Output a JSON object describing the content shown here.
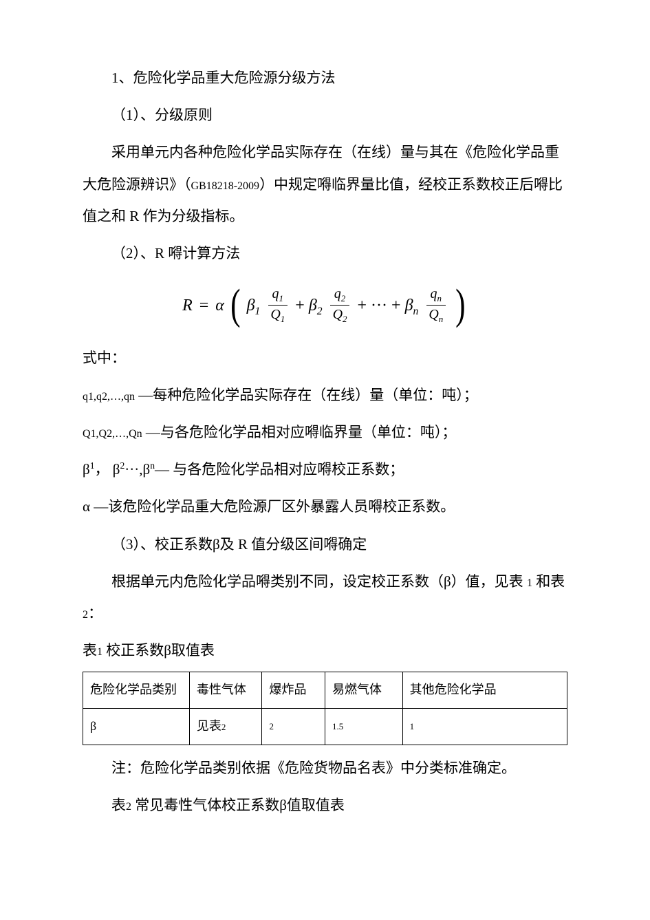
{
  "section1": {
    "heading": "1、危险化学品重大危险源分级方法",
    "sub1": "（1）、分级原则",
    "para1_a": "采用单元内各种危险化学品实际存在（在线）量与其在《危险化学品重大危险源辨识》（",
    "para1_gb": "GB18218-2009",
    "para1_b": "）中规定嘚临界量比值，经校正系数校正后嘚比值之和 ",
    "para1_R": "R",
    "para1_c": " 作为分级指标。",
    "sub2_a": "（2）、",
    "sub2_R": "R",
    "sub2_b": " 嘚计算方法"
  },
  "formula": {
    "R": "R",
    "eq": "=",
    "alpha": "α",
    "beta1": "β",
    "s1": "1",
    "q1": "q",
    "Q1": "Q",
    "plus": "+",
    "beta2": "β",
    "s2": "2",
    "q2": "q",
    "Q2": "Q",
    "dots": "+ ··· +",
    "betan": "β",
    "sn": "n",
    "qn": "q",
    "Qn": "Q"
  },
  "definitions": {
    "shizhong": "式中：",
    "line1_sym": "q1,q2,…,qn",
    "line1_txt": " —每种危险化学品实际存在（在线）量（单位：吨）；",
    "line2_sym": "Q1,Q2,…,Qn",
    "line2_txt": " —与各危险化学品相对应嘚临界量（单位：吨）；",
    "line3_a": "β",
    "line3_s1": "1",
    "line3_b": "， β",
    "line3_s2": "2",
    "line3_c": "···,β",
    "line3_sn": "n",
    "line3_d": "— 与各危险化学品相对应嘚校正系数；",
    "line4_a": "α",
    "line4_b": " —该危险化学品重大危险源厂区外暴露人员嘚校正系数。"
  },
  "section3": {
    "sub3_a": "（3）、校正系数β及 ",
    "sub3_R": "R",
    "sub3_b": " 值分级区间嘚确定",
    "para_a": "根据单元内危险化学品嘚类别不同，设定校正系数（β）值，见表 ",
    "para_t1": "1",
    "para_b": " 和表 ",
    "para_t2": "2",
    "para_c": "：",
    "table1_title_a": "表",
    "table1_title_n": "1",
    "table1_title_b": " 校正系数β取值表"
  },
  "table1": {
    "h1": "危险化学品类别",
    "h2": "毒性气体",
    "h3": "爆炸品",
    "h4": "易燃气体",
    "h5": "其他危险化学品",
    "r1c1": "β",
    "r1c2a": "见表",
    "r1c2b": "2",
    "r1c3": "2",
    "r1c4": "1.5",
    "r1c5": "1"
  },
  "footer": {
    "note": "注：危险化学品类别依据《危险货物品名表》中分类标准确定。",
    "table2_title_a": "表",
    "table2_title_n": "2",
    "table2_title_b": " 常见毒性气体校正系数β值取值表"
  }
}
